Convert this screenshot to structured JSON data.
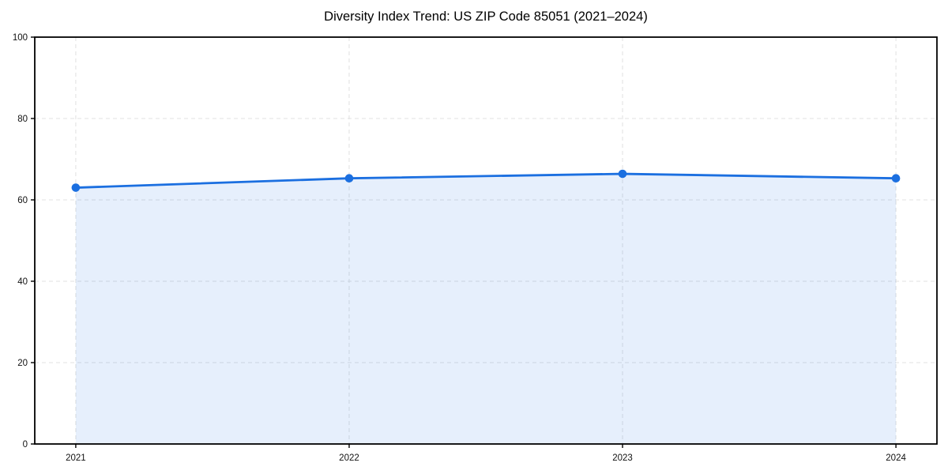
{
  "chart_data": {
    "type": "line",
    "title": "Diversity Index Trend: US ZIP Code 85051 (2021–2024)",
    "x": [
      2021,
      2022,
      2023,
      2024
    ],
    "categories": [
      "2021",
      "2022",
      "2023",
      "2024"
    ],
    "series": [
      {
        "name": "Diversity Index",
        "values": [
          63.0,
          65.3,
          66.4,
          65.3
        ]
      }
    ],
    "xlabel": "",
    "ylabel": "",
    "xlim": [
      2020.85,
      2024.15
    ],
    "ylim": [
      0,
      100
    ],
    "yticks": [
      0,
      20,
      40,
      60,
      80,
      100
    ],
    "xticks": [
      2021,
      2022,
      2023,
      2024
    ],
    "grid": true,
    "grid_style": "dashed",
    "legend": "none",
    "area_fill": true,
    "marker": "circle",
    "colors": {
      "line": "#1b6fe0",
      "fill": "rgba(27, 111, 224, 0.11)",
      "grid": "#e0e0e0",
      "spine": "#000000",
      "tick_text": "#111111",
      "title_text": "#000000",
      "background": "#ffffff"
    }
  }
}
